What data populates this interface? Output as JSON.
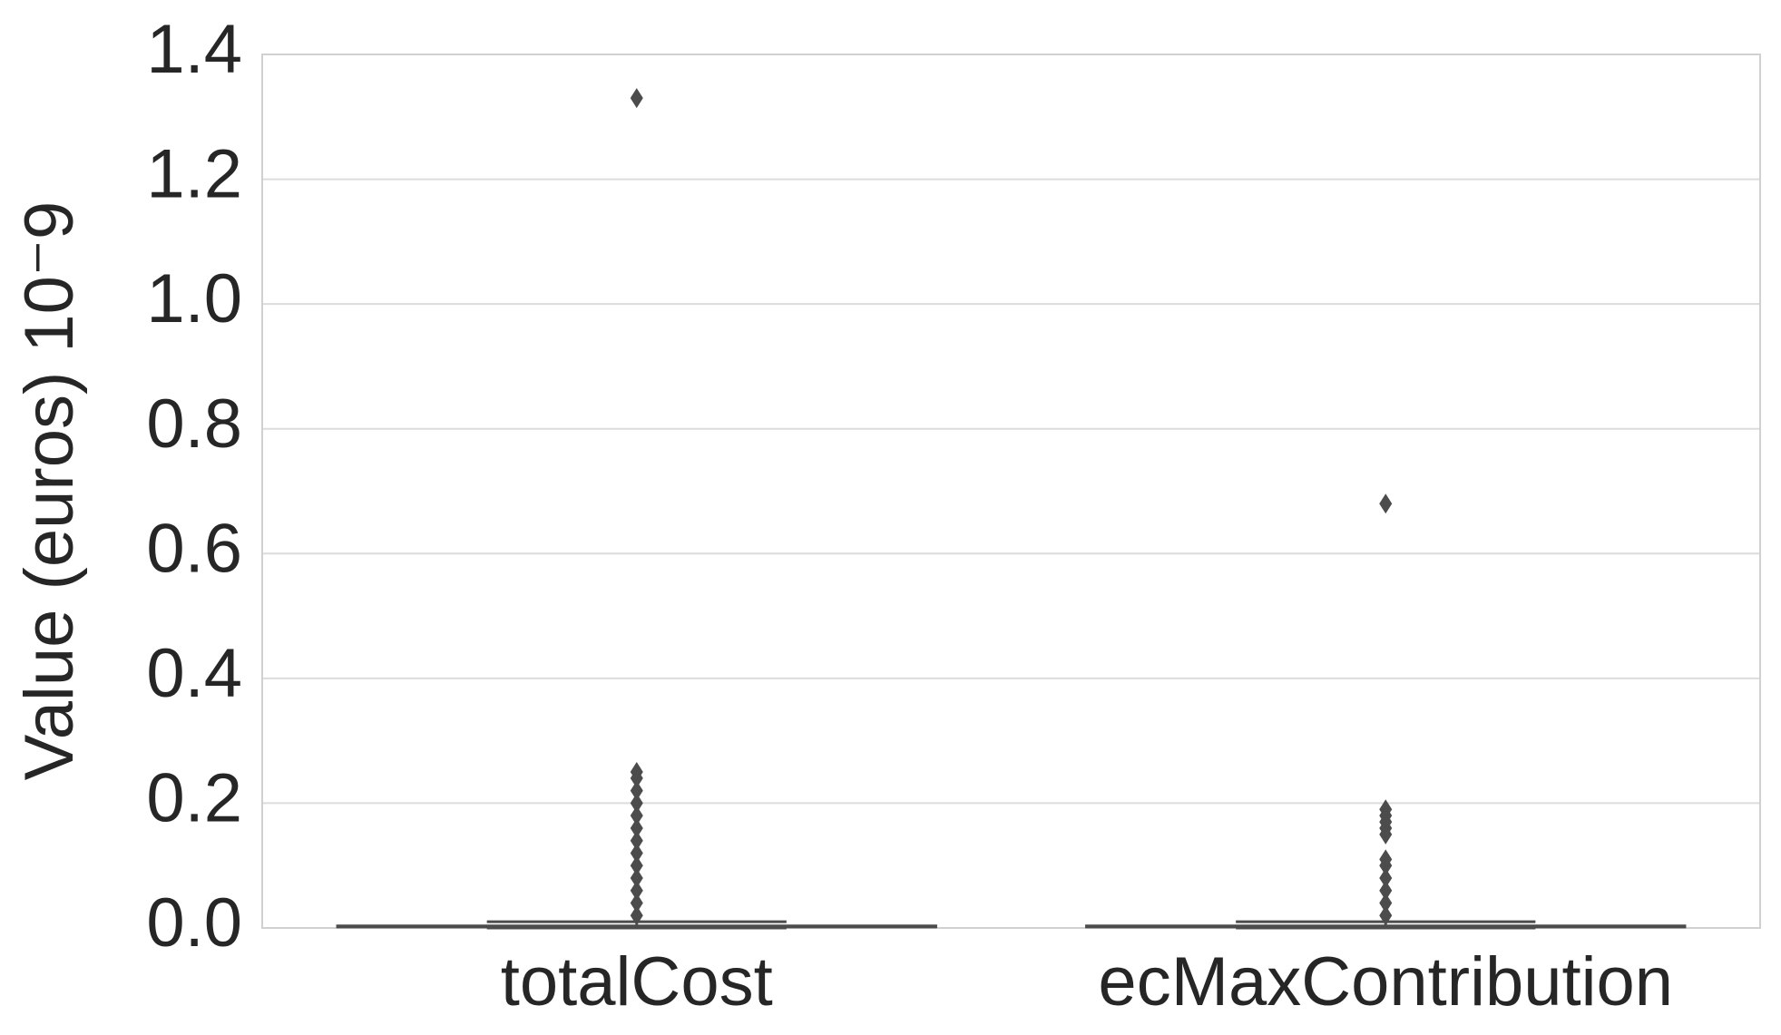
{
  "chart_data": {
    "type": "box",
    "y_label": "Value (euros) 10⁻9",
    "categories": [
      "totalCost",
      "ecMaxContribution"
    ],
    "series": [
      {
        "name": "totalCost",
        "color": "#4c4c4c",
        "whislo": 0,
        "q1": 0.001,
        "med": 0.002,
        "q3": 0.004,
        "whishi": 0.01,
        "outliers": [
          0.02,
          0.04,
          0.06,
          0.08,
          0.1,
          0.12,
          0.14,
          0.16,
          0.18,
          0.2,
          0.22,
          0.24,
          0.25,
          1.33
        ]
      },
      {
        "name": "ecMaxContribution",
        "color": "#4c4c4c",
        "whislo": 0,
        "q1": 0.001,
        "med": 0.002,
        "q3": 0.004,
        "whishi": 0.01,
        "outliers": [
          0.02,
          0.04,
          0.06,
          0.08,
          0.1,
          0.11,
          0.15,
          0.16,
          0.17,
          0.18,
          0.19,
          0.68
        ]
      }
    ],
    "ylim": [
      0,
      1.4
    ],
    "yticks": [
      {
        "value": 0,
        "label": "0.0"
      },
      0.2,
      0.4,
      0.6,
      0.8,
      {
        "value": 1,
        "label": "1.0"
      },
      1.2,
      1.4
    ],
    "grid": true
  }
}
